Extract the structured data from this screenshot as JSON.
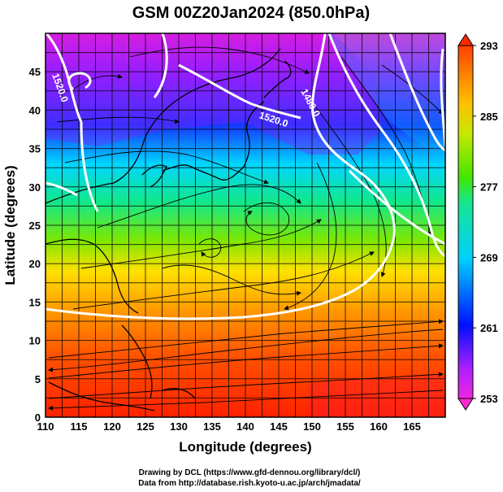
{
  "title": "GSM 00Z20Jan2024 (850.0hPa)",
  "xlabel": "Longitude (degrees)",
  "ylabel": "Latitude (degrees)",
  "credits": [
    "Drawing by DCL (https://www.gfd-dennou.org/library/dcl/)",
    "Data from http://database.rish.kyoto-u.ac.jp/arch/jmadata/"
  ],
  "map": {
    "lon_range": [
      110,
      170
    ],
    "lat_range": [
      0,
      50
    ],
    "lon_ticks": [
      "110",
      "115",
      "120",
      "125",
      "130",
      "135",
      "140",
      "145",
      "150",
      "155",
      "160",
      "165"
    ],
    "lat_ticks": [
      "0",
      "5",
      "10",
      "15",
      "20",
      "25",
      "30",
      "35",
      "40",
      "45"
    ],
    "grid": "on",
    "contour_labels": [
      {
        "text": "1520.0",
        "lon": 146.5,
        "lat": 40.5
      },
      {
        "text": "1480.0",
        "lon": 151,
        "lat": 42,
        "rotate": 62
      },
      {
        "text": "1520.0",
        "lon": 112,
        "lat": 45,
        "rotate": 70
      }
    ]
  },
  "colorbar": {
    "min": 253,
    "max": 293,
    "labels": [
      "253",
      "261",
      "269",
      "277",
      "285",
      "293"
    ],
    "colors": [
      "#ff2ad2",
      "#0000ff",
      "#00d8ff",
      "#3fe400",
      "#ffa000",
      "#ff2200"
    ]
  }
}
